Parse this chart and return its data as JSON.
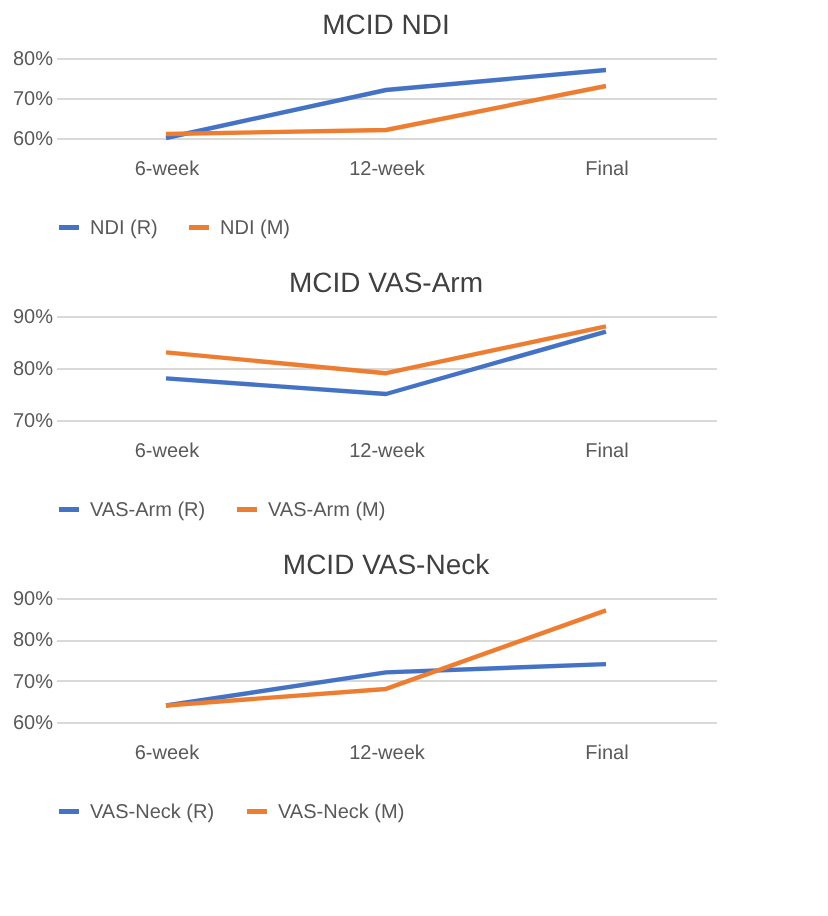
{
  "chart_data": [
    {
      "type": "line",
      "title": "MCID NDI",
      "categories": [
        "6-week",
        "12-week",
        "Final"
      ],
      "ylim": [
        60,
        80
      ],
      "yticks": [
        {
          "value": 60,
          "label": "60%"
        },
        {
          "value": 70,
          "label": "70%"
        },
        {
          "value": 80,
          "label": "80%"
        }
      ],
      "grid": "y",
      "legend": "bottom",
      "marker": "none",
      "line_style": "solid",
      "series": [
        {
          "name": "NDI (R)",
          "color": "#4472c4",
          "values": [
            60,
            72,
            77
          ]
        },
        {
          "name": "NDI (M)",
          "color": "#ed7d31",
          "values": [
            61,
            62,
            73
          ]
        }
      ]
    },
    {
      "type": "line",
      "title": "MCID VAS-Arm",
      "categories": [
        "6-week",
        "12-week",
        "Final"
      ],
      "ylim": [
        70,
        90
      ],
      "yticks": [
        {
          "value": 70,
          "label": "70%"
        },
        {
          "value": 80,
          "label": "80%"
        },
        {
          "value": 90,
          "label": "90%"
        }
      ],
      "grid": "y",
      "legend": "bottom",
      "marker": "none",
      "line_style": "solid",
      "series": [
        {
          "name": "VAS-Arm (R)",
          "color": "#4472c4",
          "values": [
            78,
            75,
            87
          ]
        },
        {
          "name": "VAS-Arm (M)",
          "color": "#ed7d31",
          "values": [
            83,
            79,
            88
          ]
        }
      ]
    },
    {
      "type": "line",
      "title": "MCID VAS-Neck",
      "categories": [
        "6-week",
        "12-week",
        "Final"
      ],
      "ylim": [
        60,
        90
      ],
      "yticks": [
        {
          "value": 60,
          "label": "60%"
        },
        {
          "value": 70,
          "label": "70%"
        },
        {
          "value": 80,
          "label": "80%"
        },
        {
          "value": 90,
          "label": "90%"
        }
      ],
      "grid": "y",
      "legend": "bottom",
      "marker": "none",
      "line_style": "solid",
      "series": [
        {
          "name": "VAS-Neck (R)",
          "color": "#4472c4",
          "values": [
            64,
            72,
            74
          ]
        },
        {
          "name": "VAS-Neck (M)",
          "color": "#ed7d31",
          "values": [
            64,
            68,
            87
          ]
        }
      ]
    }
  ]
}
